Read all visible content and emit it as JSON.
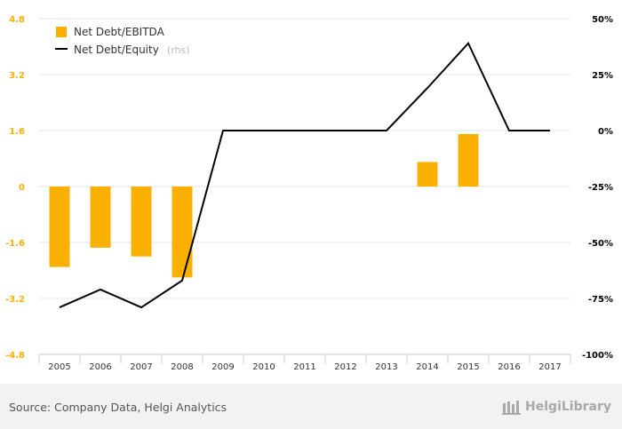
{
  "chart_data": {
    "type": "bar+line",
    "categories": [
      "2005",
      "2006",
      "2007",
      "2008",
      "2009",
      "2010",
      "2011",
      "2012",
      "2013",
      "2014",
      "2015",
      "2016",
      "2017"
    ],
    "series": [
      {
        "name": "Net Debt/EBITDA",
        "type": "bar",
        "axis": "left",
        "color": "#f9b000",
        "values": [
          -2.3,
          -1.75,
          -2.0,
          -2.6,
          null,
          null,
          null,
          null,
          null,
          0.7,
          1.5,
          null,
          null
        ]
      },
      {
        "name": "Net Debt/Equity",
        "legend_suffix": "(rhs)",
        "type": "line",
        "axis": "right",
        "color": "#000000",
        "values": [
          -79,
          -71,
          -79,
          -67,
          0,
          0,
          0,
          0,
          0,
          19,
          39,
          0,
          0
        ]
      }
    ],
    "y_left": {
      "ticks": [
        "4.8",
        "3.2",
        "1.6",
        "0",
        "-1.6",
        "-3.2",
        "-4.8"
      ],
      "ylim": [
        -4.8,
        4.8
      ],
      "tick_color": "#f9b000"
    },
    "y_right": {
      "ticks": [
        "50%",
        "25%",
        "0%",
        "-25%",
        "-50%",
        "-75%",
        "-100%"
      ],
      "ylim": [
        -100,
        50
      ],
      "tick_color": "#000000"
    },
    "grid": true,
    "legend_position": "top-left"
  },
  "footer": {
    "source": "Source: Company Data, Helgi Analytics",
    "brand": "HelgiLibrary"
  }
}
